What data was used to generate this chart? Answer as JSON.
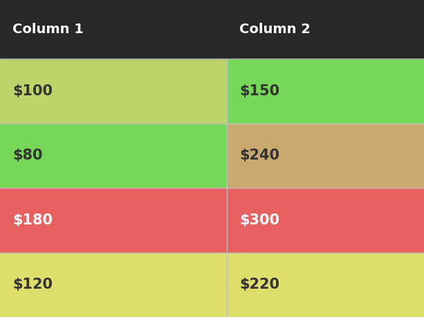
{
  "columns": [
    "Column 1",
    "Column 2"
  ],
  "rows": [
    {
      "col1_val": "$100",
      "col2_val": "$150",
      "col1_color": "#bdd468",
      "col2_color": "#76d858",
      "col1_text_color": "#333333",
      "col2_text_color": "#333333"
    },
    {
      "col1_val": "$80",
      "col2_val": "$240",
      "col1_color": "#76d858",
      "col2_color": "#c9a96e",
      "col1_text_color": "#333333",
      "col2_text_color": "#333333"
    },
    {
      "col1_val": "$180",
      "col2_val": "$300",
      "col1_color": "#e86060",
      "col2_color": "#e86060",
      "col1_text_color": "#ffffff",
      "col2_text_color": "#ffffff"
    },
    {
      "col1_val": "$120",
      "col2_val": "$220",
      "col1_color": "#dede6a",
      "col2_color": "#dede6a",
      "col1_text_color": "#333333",
      "col2_text_color": "#333333"
    }
  ],
  "header_bg": "#282828",
  "header_text_color": "#ffffff",
  "header_fontsize": 14,
  "cell_fontsize": 15,
  "divider_color": "#c0c0c0",
  "col_split": 0.535,
  "fig_width": 6.13,
  "fig_height": 4.59,
  "dpi": 100
}
